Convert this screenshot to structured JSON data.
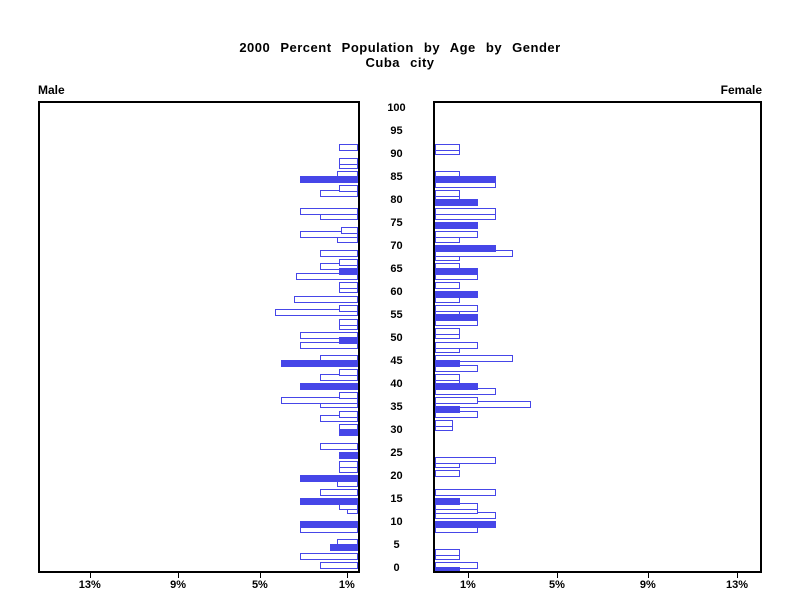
{
  "chart_data": {
    "type": "bar",
    "variant": "population-pyramid",
    "title": "2000 Percent Population by Age by Gender",
    "subtitle": "Cuba city",
    "age_axis": {
      "min": 0,
      "max": 100,
      "tick_step": 5
    },
    "pct_axis": {
      "tick_values": [
        1,
        5,
        9,
        13
      ],
      "tick_labels": [
        "1%",
        "5%",
        "9%",
        "13%"
      ],
      "max": 15,
      "unit": "%"
    },
    "bar_style_rule": "ages divisible by 5 are drawn as solid filled bars; all other ages are white bars with blue outline",
    "series": [
      {
        "name": "Male",
        "side": "left",
        "points_format": [
          "age",
          "percent"
        ],
        "points": [
          [
            1,
            1.8
          ],
          [
            3,
            2.7
          ],
          [
            5,
            1.3
          ],
          [
            6,
            1.0
          ],
          [
            9,
            2.7
          ],
          [
            10,
            2.7
          ],
          [
            13,
            0.5
          ],
          [
            14,
            0.9
          ],
          [
            15,
            2.7
          ],
          [
            17,
            1.8
          ],
          [
            19,
            1.0
          ],
          [
            20,
            2.7
          ],
          [
            22,
            0.9
          ],
          [
            23,
            0.9
          ],
          [
            25,
            0.9
          ],
          [
            27,
            1.8
          ],
          [
            30,
            0.9
          ],
          [
            31,
            0.9
          ],
          [
            33,
            1.8
          ],
          [
            34,
            0.9
          ],
          [
            36,
            1.8
          ],
          [
            37,
            3.6
          ],
          [
            38,
            0.9
          ],
          [
            40,
            2.7
          ],
          [
            42,
            1.8
          ],
          [
            43,
            0.9
          ],
          [
            45,
            3.6
          ],
          [
            46,
            1.8
          ],
          [
            49,
            2.7
          ],
          [
            50,
            0.9
          ],
          [
            51,
            2.7
          ],
          [
            53,
            0.9
          ],
          [
            54,
            0.9
          ],
          [
            56,
            3.9
          ],
          [
            57,
            0.9
          ],
          [
            59,
            3.0
          ],
          [
            61,
            0.9
          ],
          [
            62,
            0.9
          ],
          [
            64,
            2.9
          ],
          [
            65,
            0.9
          ],
          [
            66,
            1.8
          ],
          [
            67,
            0.9
          ],
          [
            69,
            1.8
          ],
          [
            72,
            1.0
          ],
          [
            73,
            2.7
          ],
          [
            74,
            0.8
          ],
          [
            77,
            1.8
          ],
          [
            78,
            2.7
          ],
          [
            82,
            1.8
          ],
          [
            83,
            0.9
          ],
          [
            85,
            2.7
          ],
          [
            86,
            1.0
          ],
          [
            88,
            0.9
          ],
          [
            89,
            0.9
          ],
          [
            92,
            0.9
          ]
        ]
      },
      {
        "name": "Female",
        "side": "right",
        "points_format": [
          "age",
          "percent"
        ],
        "points": [
          [
            0,
            1.1
          ],
          [
            1,
            1.9
          ],
          [
            3,
            1.1
          ],
          [
            4,
            1.1
          ],
          [
            9,
            1.9
          ],
          [
            10,
            2.7
          ],
          [
            12,
            2.7
          ],
          [
            13,
            1.9
          ],
          [
            14,
            1.9
          ],
          [
            15,
            1.1
          ],
          [
            17,
            2.7
          ],
          [
            21,
            1.1
          ],
          [
            23,
            1.1
          ],
          [
            24,
            2.7
          ],
          [
            31,
            0.8
          ],
          [
            32,
            0.8
          ],
          [
            34,
            1.9
          ],
          [
            35,
            1.1
          ],
          [
            36,
            4.3
          ],
          [
            37,
            1.9
          ],
          [
            39,
            2.7
          ],
          [
            40,
            1.9
          ],
          [
            41,
            1.1
          ],
          [
            42,
            1.1
          ],
          [
            44,
            1.9
          ],
          [
            45,
            1.1
          ],
          [
            46,
            3.5
          ],
          [
            48,
            1.1
          ],
          [
            49,
            1.9
          ],
          [
            51,
            1.1
          ],
          [
            52,
            1.1
          ],
          [
            54,
            1.9
          ],
          [
            55,
            1.9
          ],
          [
            56,
            1.1
          ],
          [
            57,
            1.9
          ],
          [
            59,
            1.1
          ],
          [
            60,
            1.9
          ],
          [
            62,
            1.1
          ],
          [
            64,
            1.9
          ],
          [
            65,
            1.9
          ],
          [
            66,
            1.1
          ],
          [
            68,
            1.1
          ],
          [
            69,
            3.5
          ],
          [
            70,
            2.7
          ],
          [
            72,
            1.1
          ],
          [
            73,
            1.9
          ],
          [
            75,
            1.9
          ],
          [
            77,
            2.7
          ],
          [
            78,
            2.7
          ],
          [
            80,
            1.9
          ],
          [
            81,
            1.1
          ],
          [
            82,
            1.1
          ],
          [
            84,
            2.7
          ],
          [
            85,
            2.7
          ],
          [
            86,
            1.1
          ],
          [
            91,
            1.1
          ],
          [
            92,
            1.1
          ]
        ]
      }
    ],
    "legend_position": "none",
    "grid": false
  },
  "colors": {
    "bar_blue": "#4646E8",
    "axis_black": "#000000",
    "background": "#FFFFFF"
  }
}
